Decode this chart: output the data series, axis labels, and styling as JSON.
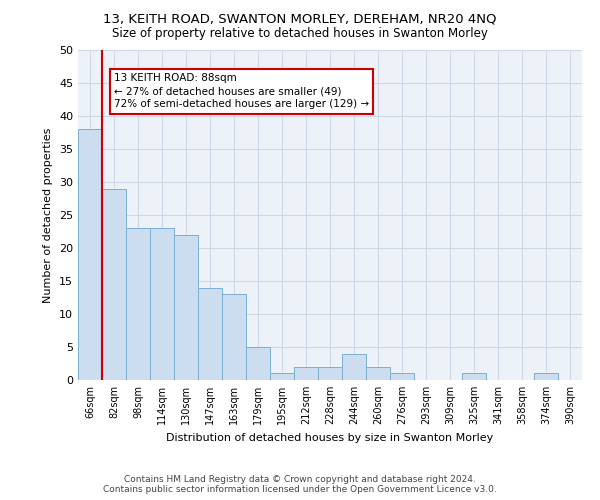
{
  "title": "13, KEITH ROAD, SWANTON MORLEY, DEREHAM, NR20 4NQ",
  "subtitle": "Size of property relative to detached houses in Swanton Morley",
  "xlabel": "Distribution of detached houses by size in Swanton Morley",
  "ylabel": "Number of detached properties",
  "categories": [
    "66sqm",
    "82sqm",
    "98sqm",
    "114sqm",
    "130sqm",
    "147sqm",
    "163sqm",
    "179sqm",
    "195sqm",
    "212sqm",
    "228sqm",
    "244sqm",
    "260sqm",
    "276sqm",
    "293sqm",
    "309sqm",
    "325sqm",
    "341sqm",
    "358sqm",
    "374sqm",
    "390sqm"
  ],
  "values": [
    38,
    29,
    23,
    23,
    22,
    14,
    13,
    5,
    1,
    2,
    2,
    4,
    2,
    1,
    0,
    0,
    1,
    0,
    0,
    1,
    0
  ],
  "bar_color": "#ccddf0",
  "bar_edge_color": "#7aafd4",
  "grid_color": "#d0d8e8",
  "vline_x": 1,
  "vline_color": "#cc0000",
  "annotation_text": "13 KEITH ROAD: 88sqm\n← 27% of detached houses are smaller (49)\n72% of semi-detached houses are larger (129) →",
  "annotation_box_color": "#cc0000",
  "ylim": [
    0,
    50
  ],
  "yticks": [
    0,
    5,
    10,
    15,
    20,
    25,
    30,
    35,
    40,
    45,
    50
  ],
  "footer_line1": "Contains HM Land Registry data © Crown copyright and database right 2024.",
  "footer_line2": "Contains public sector information licensed under the Open Government Licence v3.0.",
  "bg_color": "#edf1f8"
}
